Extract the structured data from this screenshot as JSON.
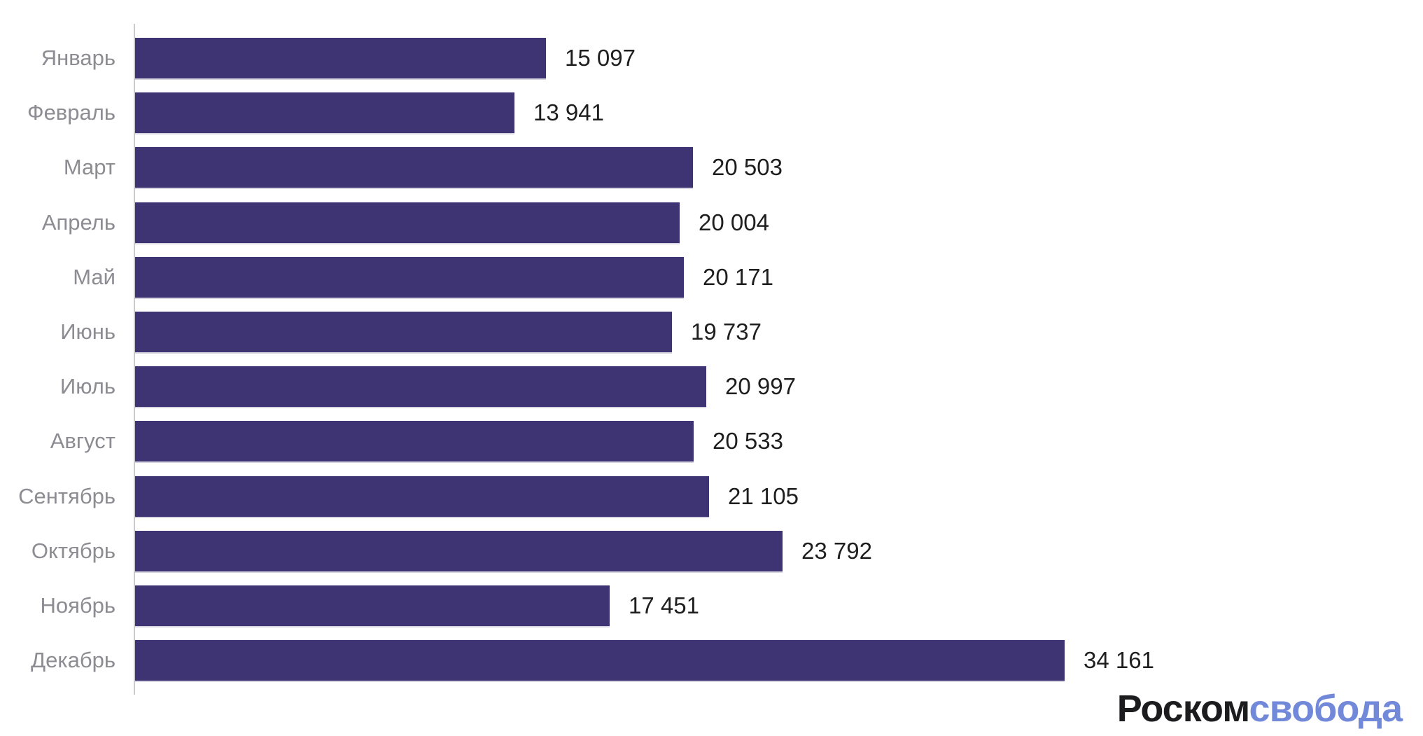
{
  "chart_data": {
    "type": "bar",
    "orientation": "horizontal",
    "title": "",
    "xlabel": "",
    "ylabel": "",
    "categories": [
      "Январь",
      "Февраль",
      "Март",
      "Апрель",
      "Май",
      "Июнь",
      "Июль",
      "Август",
      "Сентябрь",
      "Октябрь",
      "Ноябрь",
      "Декабрь"
    ],
    "values": [
      15097,
      13941,
      20503,
      20004,
      20171,
      19737,
      20997,
      20533,
      21105,
      23792,
      17451,
      34161
    ],
    "value_labels": [
      "15 097",
      "13 941",
      "20 503",
      "20 004",
      "20 171",
      "19 737",
      "20 997",
      "20 533",
      "21 105",
      "23 792",
      "17 451",
      "34 161"
    ],
    "max_value": 34161,
    "bar_color": "#3e3373",
    "category_label_color": "#8c8c92",
    "value_label_color": "#1e1e1e",
    "axis_line_color": "#c9c9ce",
    "grid": false,
    "legend": false
  },
  "branding": {
    "logo_part_black": "Роском",
    "logo_part_blue": "свобода",
    "logo_black_color": "#1c1c1e",
    "logo_blue_color": "#7289d9"
  }
}
